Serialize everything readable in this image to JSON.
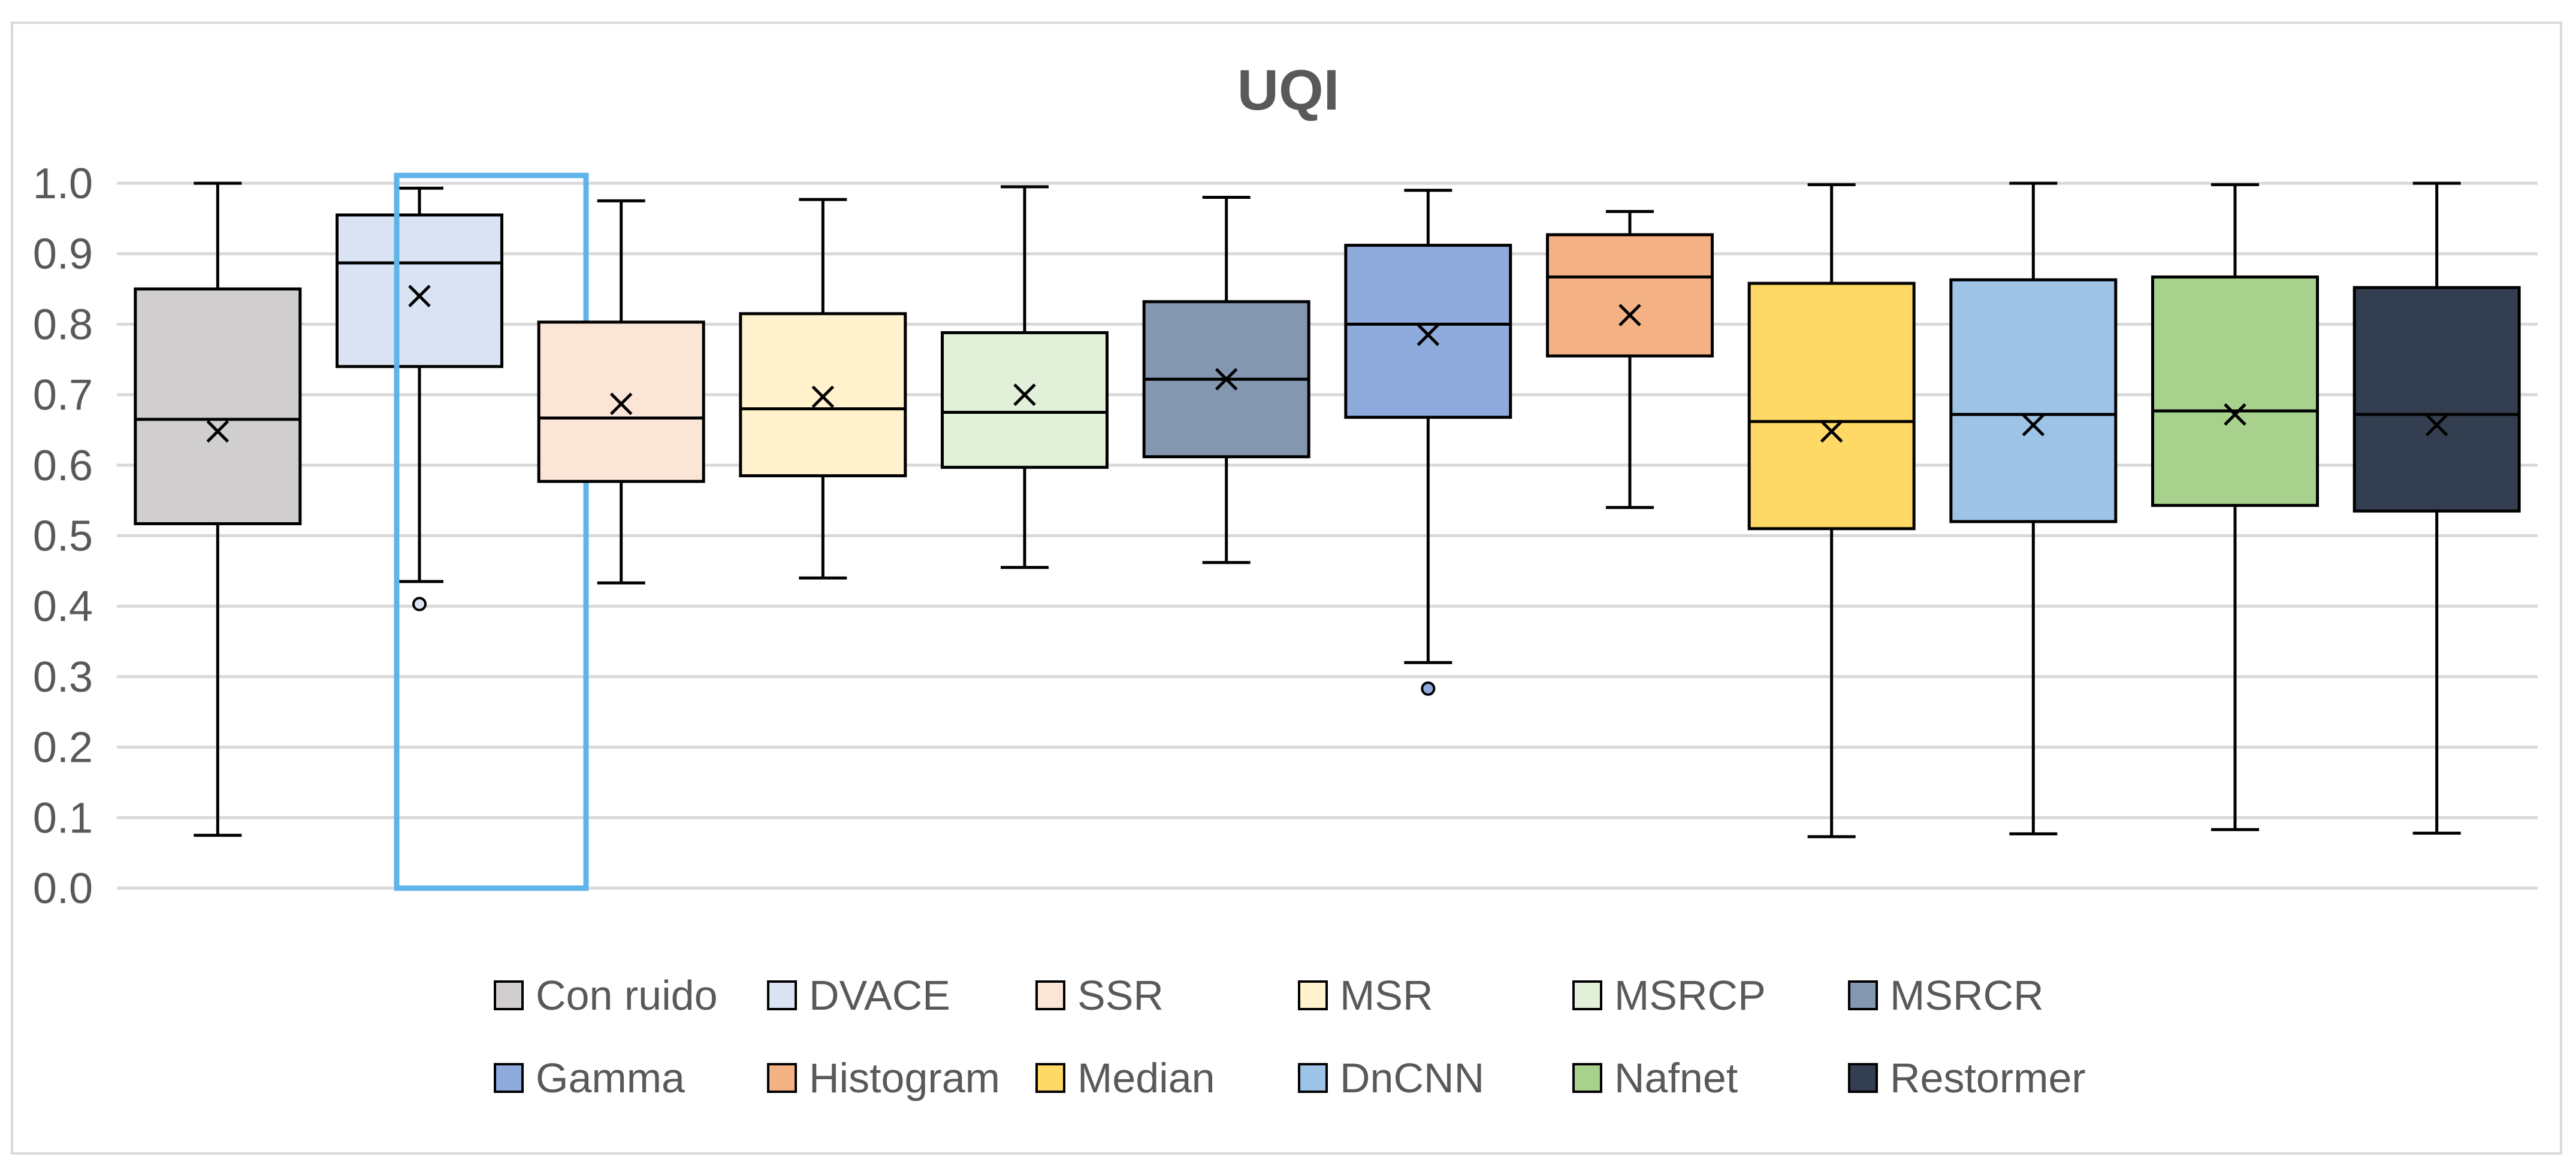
{
  "chart_data": {
    "type": "box",
    "title": "UQI",
    "xlabel": "",
    "ylabel": "",
    "ylim": [
      0,
      1
    ],
    "yticks": [
      "0.0",
      "0.1",
      "0.2",
      "0.3",
      "0.4",
      "0.5",
      "0.6",
      "0.7",
      "0.8",
      "0.9",
      "1.0"
    ],
    "grid": true,
    "legend_position": "bottom",
    "highlighted_series": "DVACE",
    "series": [
      {
        "name": "Con ruido",
        "color": "#d0cece",
        "min": 0.075,
        "q1": 0.517,
        "median": 0.665,
        "q3": 0.85,
        "max": 1.0,
        "mean": 0.648,
        "outliers": []
      },
      {
        "name": "DVACE",
        "color": "#dae3f3",
        "min": 0.435,
        "q1": 0.74,
        "median": 0.887,
        "q3": 0.955,
        "max": 0.993,
        "mean": 0.84,
        "outliers": [
          0.403
        ]
      },
      {
        "name": "SSR",
        "color": "#fbe5d6",
        "min": 0.433,
        "q1": 0.577,
        "median": 0.667,
        "q3": 0.803,
        "max": 0.975,
        "mean": 0.687,
        "outliers": []
      },
      {
        "name": "MSR",
        "color": "#fff2cc",
        "min": 0.44,
        "q1": 0.585,
        "median": 0.68,
        "q3": 0.815,
        "max": 0.977,
        "mean": 0.697,
        "outliers": []
      },
      {
        "name": "MSRCP",
        "color": "#e2f0d9",
        "min": 0.455,
        "q1": 0.597,
        "median": 0.675,
        "q3": 0.788,
        "max": 0.995,
        "mean": 0.7,
        "outliers": []
      },
      {
        "name": "MSRCR",
        "color": "#8497b0",
        "min": 0.462,
        "q1": 0.612,
        "median": 0.722,
        "q3": 0.832,
        "max": 0.98,
        "mean": 0.722,
        "outliers": []
      },
      {
        "name": "Gamma",
        "color": "#8faadc",
        "min": 0.32,
        "q1": 0.668,
        "median": 0.8,
        "q3": 0.912,
        "max": 0.99,
        "mean": 0.785,
        "outliers": [
          0.283
        ]
      },
      {
        "name": "Histogram",
        "color": "#f4b183",
        "min": 0.54,
        "q1": 0.755,
        "median": 0.867,
        "q3": 0.927,
        "max": 0.96,
        "mean": 0.813,
        "outliers": []
      },
      {
        "name": "Median",
        "color": "#ffd966",
        "min": 0.073,
        "q1": 0.51,
        "median": 0.662,
        "q3": 0.858,
        "max": 0.998,
        "mean": 0.648,
        "outliers": []
      },
      {
        "name": "DnCNN",
        "color": "#9dc3e6",
        "min": 0.077,
        "q1": 0.52,
        "median": 0.672,
        "q3": 0.863,
        "max": 1.0,
        "mean": 0.657,
        "outliers": []
      },
      {
        "name": "Nafnet",
        "color": "#a9d18e",
        "min": 0.083,
        "q1": 0.543,
        "median": 0.677,
        "q3": 0.867,
        "max": 0.998,
        "mean": 0.672,
        "outliers": []
      },
      {
        "name": "Restormer",
        "color": "#333f50",
        "min": 0.078,
        "q1": 0.535,
        "median": 0.672,
        "q3": 0.852,
        "max": 1.0,
        "mean": 0.657,
        "outliers": []
      }
    ]
  },
  "colors": {
    "highlight": "#5fb4ea",
    "grid": "#d9d9d9",
    "text": "#595959",
    "stroke": "#000000"
  }
}
